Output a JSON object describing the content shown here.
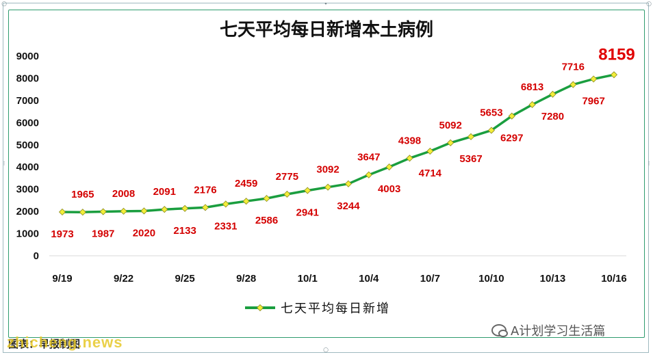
{
  "chart_data": {
    "type": "line",
    "title": "七天平均每日新增本土病例",
    "x": [
      "9/19",
      "9/20",
      "9/21",
      "9/22",
      "9/23",
      "9/24",
      "9/25",
      "9/26",
      "9/27",
      "9/28",
      "9/29",
      "9/30",
      "10/1",
      "10/2",
      "10/3",
      "10/4",
      "10/5",
      "10/6",
      "10/7",
      "10/8",
      "10/9",
      "10/10",
      "10/11",
      "10/12",
      "10/13",
      "10/14",
      "10/15",
      "10/16"
    ],
    "x_tick_labels": [
      "9/19",
      "9/22",
      "9/25",
      "9/28",
      "10/1",
      "10/4",
      "10/7",
      "10/10",
      "10/13",
      "10/16"
    ],
    "series": [
      {
        "name": "七天平均每日新增",
        "color": "#1a9e3f",
        "marker_color": "#f2ee3a",
        "values": [
          1973,
          1965,
          1987,
          2008,
          2020,
          2091,
          2133,
          2176,
          2331,
          2459,
          2586,
          2775,
          2941,
          3092,
          3244,
          3647,
          4003,
          4398,
          4714,
          5092,
          5367,
          5653,
          6297,
          6813,
          7280,
          7716,
          7967,
          8159
        ]
      }
    ],
    "ylim": [
      0,
      9000
    ],
    "y_ticks": [
      "0",
      "1000",
      "2000",
      "3000",
      "4000",
      "5000",
      "6000",
      "7000",
      "8000",
      "9000"
    ],
    "xlabel": "",
    "ylabel": "",
    "legend_position": "bottom",
    "grid": false,
    "data_label_color": "#d40000"
  },
  "source_text": "图表：早报制图",
  "watermarks": {
    "site": "zhicheng.news",
    "wechat": "A计划学习生活篇"
  }
}
